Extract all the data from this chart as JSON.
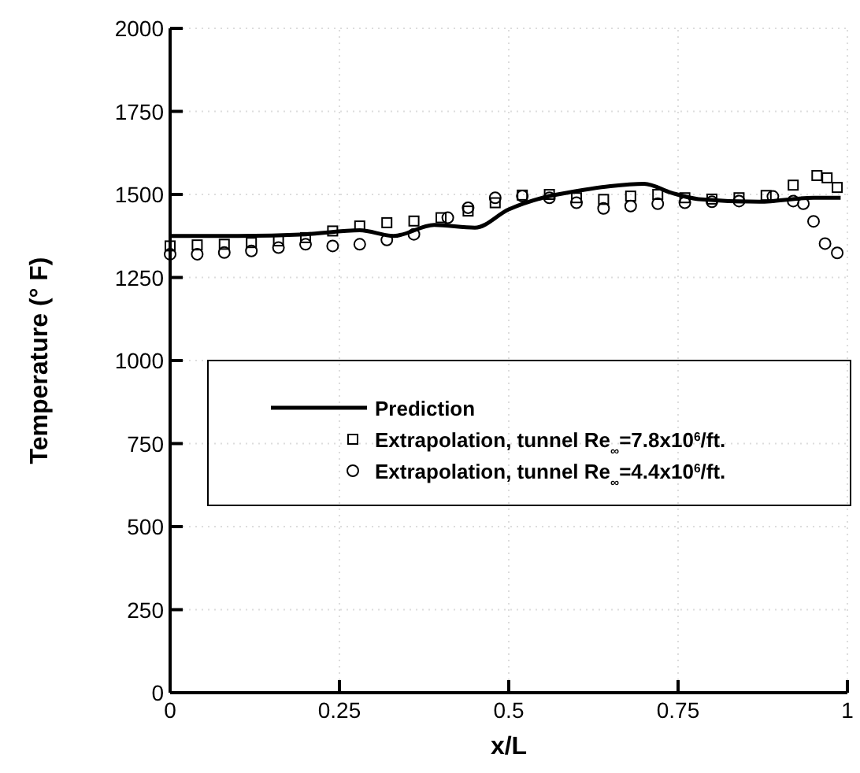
{
  "chart_data": {
    "type": "scatter",
    "xlabel": "x/L",
    "ylabel": "Temperature (° F)",
    "xlim": [
      0,
      1
    ],
    "xticks": [
      0,
      0.25,
      0.5,
      0.75,
      1
    ],
    "ylim": [
      0,
      2000
    ],
    "yticks": [
      0,
      250,
      500,
      750,
      1000,
      1250,
      1500,
      1750,
      2000
    ],
    "grid": true,
    "legend": "center",
    "series": [
      {
        "name": "Prediction",
        "type": "line",
        "color": "#000000",
        "marker": "none",
        "line_style": "solid",
        "x": [
          0,
          0.1,
          0.2,
          0.28,
          0.33,
          0.39,
          0.45,
          0.5,
          0.55,
          0.6,
          0.65,
          0.7,
          0.74,
          0.78,
          0.87,
          0.95,
          0.99
        ],
        "values": [
          1375,
          1375,
          1380,
          1392,
          1375,
          1408,
          1400,
          1455,
          1490,
          1510,
          1525,
          1532,
          1505,
          1486,
          1478,
          1490,
          1490
        ]
      },
      {
        "name": "Extrapolation, tunnel Re$_{∞}$=7.8x10$^{6}$/ft.",
        "color": "#000000",
        "marker": "square",
        "x": [
          0,
          0.04,
          0.08,
          0.12,
          0.16,
          0.2,
          0.24,
          0.28,
          0.32,
          0.36,
          0.4,
          0.44,
          0.48,
          0.52,
          0.56,
          0.6,
          0.64,
          0.68,
          0.72,
          0.76,
          0.8,
          0.84,
          0.88,
          0.92,
          0.955,
          0.97,
          0.985
        ],
        "values": [
          1345,
          1348,
          1350,
          1355,
          1360,
          1370,
          1390,
          1405,
          1415,
          1420,
          1430,
          1450,
          1475,
          1498,
          1500,
          1490,
          1485,
          1495,
          1500,
          1490,
          1486,
          1490,
          1497,
          1528,
          1557,
          1550,
          1521
        ]
      },
      {
        "name": "Extrapolation, tunnel Re$_{∞}$=4.4x10$^{6}$/ft.",
        "color": "#000000",
        "marker": "circle",
        "x": [
          0,
          0.04,
          0.08,
          0.12,
          0.16,
          0.2,
          0.24,
          0.28,
          0.32,
          0.36,
          0.41,
          0.44,
          0.48,
          0.52,
          0.56,
          0.6,
          0.64,
          0.68,
          0.72,
          0.76,
          0.8,
          0.84,
          0.89,
          0.92,
          0.935,
          0.95,
          0.967,
          0.985
        ],
        "values": [
          1320,
          1320,
          1325,
          1330,
          1340,
          1350,
          1345,
          1350,
          1363,
          1380,
          1430,
          1460,
          1490,
          1495,
          1490,
          1475,
          1458,
          1465,
          1472,
          1475,
          1478,
          1480,
          1494,
          1480,
          1472,
          1419,
          1352,
          1324
        ]
      }
    ]
  }
}
